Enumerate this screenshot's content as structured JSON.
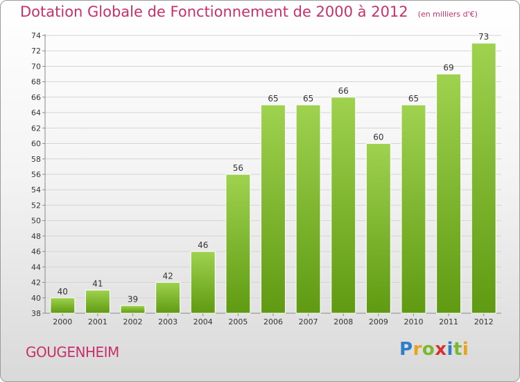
{
  "title": "Dotation Globale de Fonctionnement de 2000 à 2012",
  "subtitle": "(en milliers d'€)",
  "commune": "GOUGENHEIM",
  "brand": {
    "letters": [
      "P",
      "r",
      "o",
      "x",
      "i",
      "t",
      "i"
    ],
    "colors": [
      "#2f7fc8",
      "#e8a31b",
      "#7cb82f",
      "#d8322f",
      "#2f7fc8",
      "#7cb82f",
      "#e8a31b"
    ]
  },
  "colors": {
    "bar_top": "#9fd24f",
    "bar_bottom": "#5f9a12",
    "title": "#c8306a"
  },
  "chart_data": {
    "type": "bar",
    "categories": [
      "2000",
      "2001",
      "2002",
      "2003",
      "2004",
      "2005",
      "2006",
      "2007",
      "2008",
      "2009",
      "2010",
      "2011",
      "2012"
    ],
    "values": [
      40,
      41,
      39,
      42,
      46,
      56,
      65,
      65,
      66,
      60,
      65,
      69,
      73
    ],
    "ylim": [
      38,
      74
    ],
    "yticks": [
      38,
      40,
      42,
      44,
      46,
      48,
      50,
      52,
      54,
      56,
      58,
      60,
      62,
      64,
      66,
      68,
      70,
      72,
      74
    ],
    "grid": true,
    "data_labels": true
  }
}
